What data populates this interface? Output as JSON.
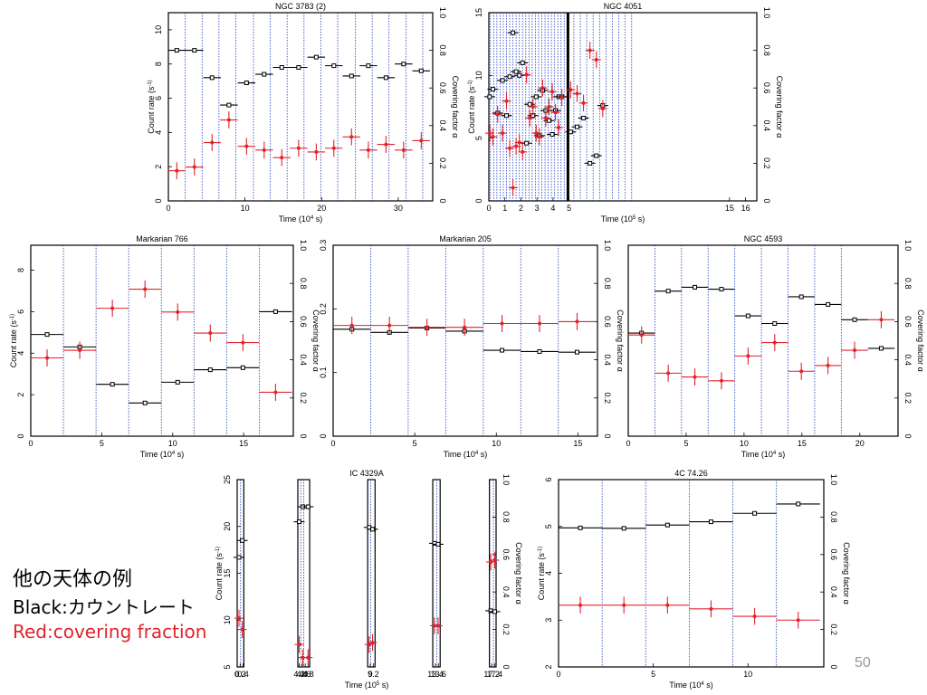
{
  "slide": {
    "caption_title": "他の天体の例",
    "caption_black": "Black:カウントレート",
    "caption_red": "Red:covering fraction",
    "page_number": "50"
  },
  "colors": {
    "count_rate": "#000000",
    "covering": "#e0242c",
    "guide_line": "#1f3fbf"
  },
  "chart_data": [
    {
      "type": "scatter",
      "title": "NGC 3783 (2)",
      "xlabel": "Time (10^4 s)",
      "ylabel": "Count rate (s^-1)",
      "y2label": "Covering factor α",
      "xlim": [
        0,
        34.5
      ],
      "ylim": [
        0,
        11
      ],
      "y2lim": [
        0,
        1
      ],
      "xticks": [
        0,
        10,
        20,
        30
      ],
      "yticks": [
        0,
        2,
        4,
        6,
        8,
        10
      ],
      "y2ticks": [
        0,
        0.2,
        0.4,
        0.6,
        0.8,
        1.0
      ],
      "guide_lines": [
        2.2,
        4.4,
        6.6,
        8.8,
        11.1,
        13.3,
        15.5,
        17.7,
        19.9,
        22.1,
        24.4,
        26.6,
        28.8,
        31.0,
        33.2
      ],
      "series": [
        {
          "role": "count_rate",
          "x": [
            1.1,
            3.4,
            5.7,
            7.9,
            10.2,
            12.5,
            14.8,
            17.0,
            19.3,
            21.6,
            23.9,
            26.1,
            28.4,
            30.7,
            33.0
          ],
          "values": [
            8.8,
            8.8,
            7.2,
            5.6,
            6.9,
            7.4,
            7.8,
            7.8,
            8.4,
            7.9,
            7.3,
            7.9,
            7.2,
            8.0,
            7.6
          ]
        },
        {
          "role": "covering",
          "x": [
            1.1,
            3.4,
            5.7,
            7.9,
            10.2,
            12.5,
            14.8,
            17.0,
            19.3,
            21.6,
            23.9,
            26.1,
            28.4,
            30.7,
            33.0
          ],
          "values": [
            0.16,
            0.18,
            0.31,
            0.43,
            0.29,
            0.27,
            0.23,
            0.28,
            0.26,
            0.28,
            0.34,
            0.27,
            0.3,
            0.27,
            0.32
          ]
        }
      ]
    },
    {
      "type": "scatter",
      "title": "NGC 4051",
      "xlabel": "Time (10^5 s)",
      "ylabel": "Count rate (s^-1)",
      "y2label": "Covering factor α",
      "xlim": [
        0,
        16.7
      ],
      "ylim": [
        0,
        15
      ],
      "y2lim": [
        0,
        1
      ],
      "xticks": [
        0,
        1,
        2,
        3,
        4,
        5,
        15,
        16
      ],
      "yticks": [
        0,
        5,
        10,
        15
      ],
      "y2ticks": [
        0,
        0.2,
        0.4,
        0.6,
        0.8,
        1.0
      ],
      "panel_breaks": [
        4.93
      ],
      "guide_lines": [
        0.1,
        0.3,
        0.5,
        0.7,
        0.9,
        1.1,
        1.3,
        1.5,
        1.7,
        1.9,
        2.1,
        2.3,
        2.5,
        2.7,
        2.9,
        3.1,
        3.3,
        3.5,
        3.7,
        3.9,
        4.1,
        4.3,
        4.5,
        4.7,
        5.3,
        5.7,
        6.1,
        6.5,
        6.9,
        7.3,
        7.7,
        8.1,
        8.5,
        8.9
      ],
      "series": [
        {
          "role": "count_rate",
          "x": [
            0.05,
            0.25,
            0.55,
            0.85,
            1.1,
            1.3,
            1.5,
            1.7,
            1.9,
            2.1,
            2.35,
            2.55,
            2.75,
            2.95,
            3.15,
            3.35,
            3.55,
            3.75,
            3.95,
            4.15,
            4.35,
            4.55,
            5.1,
            5.5,
            5.9,
            6.3,
            6.7,
            7.1
          ],
          "values": [
            8.3,
            8.9,
            7.0,
            9.6,
            6.8,
            9.9,
            13.4,
            10.3,
            10.0,
            11.0,
            4.6,
            7.7,
            6.8,
            8.3,
            5.2,
            8.8,
            7.2,
            6.4,
            5.3,
            7.2,
            8.3,
            8.3,
            5.5,
            5.9,
            6.6,
            3.0,
            3.6,
            7.6
          ]
        },
        {
          "role": "covering",
          "x": [
            0.05,
            0.25,
            0.55,
            0.85,
            1.1,
            1.3,
            1.5,
            1.7,
            1.9,
            2.1,
            2.35,
            2.55,
            2.75,
            2.95,
            3.15,
            3.35,
            3.55,
            3.75,
            3.95,
            4.15,
            4.35,
            4.55,
            5.1,
            5.5,
            5.9,
            6.3,
            6.7,
            7.1
          ],
          "values": [
            0.36,
            0.34,
            0.46,
            0.36,
            0.53,
            0.28,
            0.07,
            0.29,
            0.31,
            0.26,
            0.67,
            0.44,
            0.5,
            0.36,
            0.34,
            0.6,
            0.44,
            0.5,
            0.58,
            0.47,
            0.39,
            0.55,
            0.59,
            0.57,
            0.52,
            0.8,
            0.75,
            0.49
          ]
        }
      ]
    },
    {
      "type": "scatter",
      "title": "Markarian 766",
      "xlabel": "Time (10^4 s)",
      "ylabel": "Count rate (s^-1)",
      "y2label": "Covering factor α",
      "xlim": [
        0,
        18.5
      ],
      "ylim": [
        0,
        9.2
      ],
      "y2lim": [
        0,
        1
      ],
      "xticks": [
        0,
        5,
        10,
        15
      ],
      "yticks": [
        0,
        2,
        4,
        6,
        8
      ],
      "y2ticks": [
        0,
        0.2,
        0.4,
        0.6,
        0.8,
        1.0
      ],
      "guide_lines": [
        2.3,
        4.6,
        6.9,
        9.2,
        11.5,
        13.8,
        16.1
      ],
      "series": [
        {
          "role": "count_rate",
          "x": [
            1.15,
            3.45,
            5.75,
            8.05,
            10.35,
            12.65,
            14.95,
            17.25
          ],
          "values": [
            4.9,
            4.3,
            2.5,
            1.6,
            2.6,
            3.2,
            3.3,
            6.0
          ]
        },
        {
          "role": "covering",
          "x": [
            1.15,
            3.45,
            5.75,
            8.05,
            10.35,
            12.65,
            14.95,
            17.25
          ],
          "values": [
            0.41,
            0.45,
            0.67,
            0.77,
            0.65,
            0.54,
            0.49,
            0.23
          ]
        }
      ]
    },
    {
      "type": "scatter",
      "title": "Markarian 205",
      "xlabel": "Time (10^4 s)",
      "ylabel": "",
      "y2label": "Covering factor α",
      "xlim": [
        0,
        16.2
      ],
      "ylim": [
        0,
        0.3
      ],
      "y2lim": [
        0,
        1
      ],
      "xticks": [
        0,
        5,
        10,
        15
      ],
      "yticks": [
        0,
        0.1,
        0.2,
        0.3
      ],
      "y2ticks": [
        0,
        0.2,
        0.4,
        0.6,
        0.8,
        1.0
      ],
      "guide_lines": [
        2.3,
        4.6,
        6.9,
        9.2,
        11.5,
        13.8
      ],
      "series": [
        {
          "role": "count_rate",
          "x": [
            1.15,
            3.45,
            5.75,
            8.05,
            10.35,
            12.65,
            14.95
          ],
          "values": [
            0.168,
            0.163,
            0.17,
            0.165,
            0.135,
            0.133,
            0.132
          ]
        },
        {
          "role": "covering",
          "x": [
            1.15,
            3.45,
            5.75,
            8.05,
            10.35,
            12.65,
            14.95
          ],
          "values": [
            0.58,
            0.58,
            0.57,
            0.57,
            0.59,
            0.59,
            0.6
          ]
        }
      ]
    },
    {
      "type": "scatter",
      "title": "NGC 4593",
      "xlabel": "Time (10^4 s)",
      "ylabel": "",
      "y2label": "Covering factor α",
      "xlim": [
        0,
        23.3
      ],
      "ylim": [
        0,
        1
      ],
      "y2lim": [
        0,
        1
      ],
      "xticks": [
        0,
        5,
        10,
        15,
        20
      ],
      "yticks": [],
      "y2ticks": [
        0,
        0.2,
        0.4,
        0.6,
        0.8,
        1.0
      ],
      "guide_lines": [
        2.3,
        4.6,
        6.9,
        9.2,
        11.5,
        13.8,
        16.1,
        18.4
      ],
      "series": [
        {
          "role": "count_rate",
          "x": [
            1.15,
            3.45,
            5.75,
            8.05,
            10.35,
            12.65,
            14.95,
            17.25,
            19.55,
            21.85
          ],
          "values": [
            0.54,
            0.76,
            0.78,
            0.77,
            0.63,
            0.59,
            0.73,
            0.69,
            0.61,
            0.46
          ]
        },
        {
          "role": "covering",
          "x": [
            1.15,
            3.45,
            5.75,
            8.05,
            10.35,
            12.65,
            14.95,
            17.25,
            19.55,
            21.85
          ],
          "values": [
            0.53,
            0.33,
            0.31,
            0.29,
            0.42,
            0.49,
            0.34,
            0.37,
            0.45,
            0.61
          ]
        }
      ]
    },
    {
      "type": "scatter",
      "title": "IC 4329A",
      "xlabel": "Time (10^5 s)",
      "ylabel": "Count rate (s^-1)",
      "y2label": "Covering factor α",
      "xlim": [
        0,
        17.5
      ],
      "ylim": [
        5,
        25
      ],
      "y2lim": [
        0,
        1
      ],
      "xticks": [
        0,
        0.2,
        0.4,
        4.2,
        4.4,
        4.6,
        4.8,
        9.0,
        9.2,
        13.4,
        13.6,
        17.2,
        17.4
      ],
      "yticks": [
        5,
        10,
        15,
        20,
        25
      ],
      "y2ticks": [
        0,
        0.2,
        0.4,
        0.6,
        0.8,
        1.0
      ],
      "panels": [
        [
          0,
          0.45
        ],
        [
          4.1,
          4.9
        ],
        [
          8.82,
          9.32
        ],
        [
          13.22,
          13.72
        ],
        [
          17.05,
          17.5
        ]
      ],
      "guide_lines": [
        0.23,
        4.3,
        4.5,
        9.02,
        13.49,
        17.32
      ],
      "series": [
        {
          "role": "count_rate",
          "x": [
            0.12,
            0.34,
            4.19,
            4.44,
            4.79,
            8.92,
            9.15,
            13.34,
            13.58,
            17.14,
            17.41
          ],
          "values": [
            16.7,
            18.5,
            20.5,
            22.1,
            22.1,
            19.9,
            19.7,
            18.2,
            18.1,
            11.0,
            10.9
          ]
        },
        {
          "role": "covering",
          "x": [
            0.12,
            0.34,
            4.19,
            4.44,
            4.79,
            8.92,
            9.15,
            13.34,
            13.58,
            17.14,
            17.41
          ],
          "values": [
            0.26,
            0.2,
            0.12,
            0.05,
            0.05,
            0.12,
            0.13,
            0.22,
            0.22,
            0.56,
            0.57
          ]
        }
      ]
    },
    {
      "type": "scatter",
      "title": "4C 74.26",
      "xlabel": "Time (10^4 s)",
      "ylabel": "Count rate (s^-1)",
      "y2label": "Covering factor α",
      "xlim": [
        0,
        14
      ],
      "ylim": [
        2,
        6
      ],
      "y2lim": [
        0,
        1
      ],
      "xticks": [
        0,
        5,
        10
      ],
      "yticks": [
        2,
        3,
        4,
        5,
        6
      ],
      "y2ticks": [
        0,
        0.2,
        0.4,
        0.6,
        0.8,
        1.0
      ],
      "guide_lines": [
        2.3,
        4.6,
        6.9,
        9.2,
        11.5
      ],
      "series": [
        {
          "role": "count_rate",
          "x": [
            1.15,
            3.45,
            5.75,
            8.05,
            10.35,
            12.65
          ],
          "values": [
            4.97,
            4.96,
            5.03,
            5.1,
            5.28,
            5.48
          ]
        },
        {
          "role": "covering",
          "x": [
            1.15,
            3.45,
            5.75,
            8.05,
            10.35,
            12.65
          ],
          "values": [
            0.33,
            0.33,
            0.33,
            0.31,
            0.27,
            0.25
          ]
        }
      ]
    }
  ]
}
